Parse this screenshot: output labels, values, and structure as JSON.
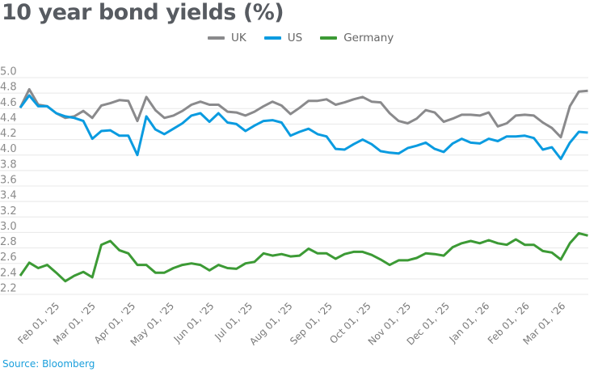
{
  "chart_data": {
    "type": "line",
    "title": "10 year bond yields (%)",
    "xlabel": "",
    "ylabel": "",
    "ylim": [
      2.2,
      5.0
    ],
    "yticks": [
      "5.0",
      "4.8",
      "4.6",
      "4.4",
      "4.2",
      "4.0",
      "3.8",
      "3.6",
      "3.4",
      "3.2",
      "3.0",
      "2.8",
      "2.6",
      "2.4",
      "2.2"
    ],
    "xticks": [
      {
        "date": "2025-02-01",
        "label": "Feb 01, '25"
      },
      {
        "date": "2025-03-01",
        "label": "Mar 01, '25"
      },
      {
        "date": "2025-04-01",
        "label": "Apr 01, '25"
      },
      {
        "date": "2025-05-01",
        "label": "May 01, '25"
      },
      {
        "date": "2025-06-01",
        "label": "Jun 01, '25"
      },
      {
        "date": "2025-07-01",
        "label": "Jul 01, '25"
      },
      {
        "date": "2025-08-01",
        "label": "Aug 01, '25"
      },
      {
        "date": "2025-09-01",
        "label": "Sep 01, '25"
      },
      {
        "date": "2025-10-01",
        "label": "Oct 01, '25"
      },
      {
        "date": "2025-11-01",
        "label": "Nov 01, '25"
      },
      {
        "date": "2025-12-01",
        "label": "Dec 01, '25"
      },
      {
        "date": "2026-01-01",
        "label": "Jan 01, '26"
      },
      {
        "date": "2026-02-01",
        "label": "Feb 01, '26"
      },
      {
        "date": "2026-03-01",
        "label": "Mar 01, '26"
      }
    ],
    "grid": true,
    "legend_position": "top-center",
    "x": [
      "2025-01-03",
      "2025-01-10",
      "2025-01-17",
      "2025-01-24",
      "2025-01-31",
      "2025-02-07",
      "2025-02-14",
      "2025-02-21",
      "2025-02-28",
      "2025-03-07",
      "2025-03-14",
      "2025-03-21",
      "2025-03-28",
      "2025-04-04",
      "2025-04-11",
      "2025-04-18",
      "2025-04-25",
      "2025-05-02",
      "2025-05-09",
      "2025-05-16",
      "2025-05-23",
      "2025-05-30",
      "2025-06-06",
      "2025-06-13",
      "2025-06-20",
      "2025-06-27",
      "2025-07-04",
      "2025-07-11",
      "2025-07-18",
      "2025-07-25",
      "2025-08-01",
      "2025-08-08",
      "2025-08-15",
      "2025-08-22",
      "2025-08-29",
      "2025-09-05",
      "2025-09-12",
      "2025-09-19",
      "2025-09-26",
      "2025-10-03",
      "2025-10-10",
      "2025-10-17",
      "2025-10-24",
      "2025-10-31",
      "2025-11-07",
      "2025-11-14",
      "2025-11-21",
      "2025-11-28",
      "2025-12-05",
      "2025-12-12",
      "2025-12-19",
      "2025-12-26",
      "2026-01-02",
      "2026-01-09",
      "2026-01-16",
      "2026-01-23",
      "2026-01-30",
      "2026-02-06",
      "2026-02-13",
      "2026-02-20",
      "2026-02-27",
      "2026-03-06",
      "2026-03-13",
      "2026-03-20"
    ],
    "series": [
      {
        "name": "UK",
        "color": "#8a8a8c",
        "values": [
          4.61,
          4.85,
          4.65,
          4.63,
          4.54,
          4.48,
          4.5,
          4.57,
          4.48,
          4.64,
          4.67,
          4.71,
          4.7,
          4.44,
          4.75,
          4.58,
          4.48,
          4.51,
          4.57,
          4.65,
          4.69,
          4.65,
          4.65,
          4.56,
          4.55,
          4.51,
          4.56,
          4.63,
          4.69,
          4.64,
          4.53,
          4.61,
          4.7,
          4.7,
          4.72,
          4.65,
          4.68,
          4.72,
          4.75,
          4.69,
          4.68,
          4.54,
          4.44,
          4.41,
          4.47,
          4.58,
          4.55,
          4.43,
          4.47,
          4.52,
          4.52,
          4.51,
          4.55,
          4.37,
          4.41,
          4.51,
          4.52,
          4.51,
          4.42,
          4.35,
          4.23,
          4.63,
          4.82,
          4.83
        ]
      },
      {
        "name": "US",
        "color": "#0a9be0",
        "values": [
          4.61,
          4.77,
          4.63,
          4.63,
          4.54,
          4.5,
          4.48,
          4.44,
          4.21,
          4.31,
          4.32,
          4.25,
          4.25,
          4.0,
          4.5,
          4.33,
          4.27,
          4.34,
          4.41,
          4.51,
          4.54,
          4.43,
          4.54,
          4.42,
          4.4,
          4.31,
          4.38,
          4.44,
          4.45,
          4.42,
          4.25,
          4.3,
          4.34,
          4.27,
          4.24,
          4.08,
          4.07,
          4.14,
          4.2,
          4.14,
          4.05,
          4.03,
          4.02,
          4.09,
          4.12,
          4.16,
          4.08,
          4.04,
          4.15,
          4.21,
          4.16,
          4.15,
          4.21,
          4.18,
          4.24,
          4.24,
          4.25,
          4.22,
          4.07,
          4.1,
          3.95,
          4.16,
          4.3,
          4.29
        ]
      },
      {
        "name": "Germany",
        "color": "#3c9a35",
        "values": [
          2.44,
          2.61,
          2.54,
          2.58,
          2.48,
          2.37,
          2.44,
          2.49,
          2.42,
          2.84,
          2.89,
          2.77,
          2.73,
          2.58,
          2.58,
          2.48,
          2.48,
          2.54,
          2.58,
          2.6,
          2.58,
          2.51,
          2.58,
          2.54,
          2.53,
          2.6,
          2.62,
          2.73,
          2.7,
          2.72,
          2.69,
          2.7,
          2.79,
          2.73,
          2.73,
          2.66,
          2.72,
          2.75,
          2.75,
          2.71,
          2.65,
          2.58,
          2.64,
          2.64,
          2.67,
          2.73,
          2.72,
          2.7,
          2.81,
          2.86,
          2.89,
          2.86,
          2.9,
          2.86,
          2.84,
          2.91,
          2.84,
          2.84,
          2.76,
          2.74,
          2.65,
          2.86,
          2.99,
          2.96
        ]
      }
    ]
  },
  "source": "Source: Bloomberg",
  "colors": {
    "title": "#575b61",
    "grid": "#e8e8e8",
    "source": "#1a9fdc"
  }
}
